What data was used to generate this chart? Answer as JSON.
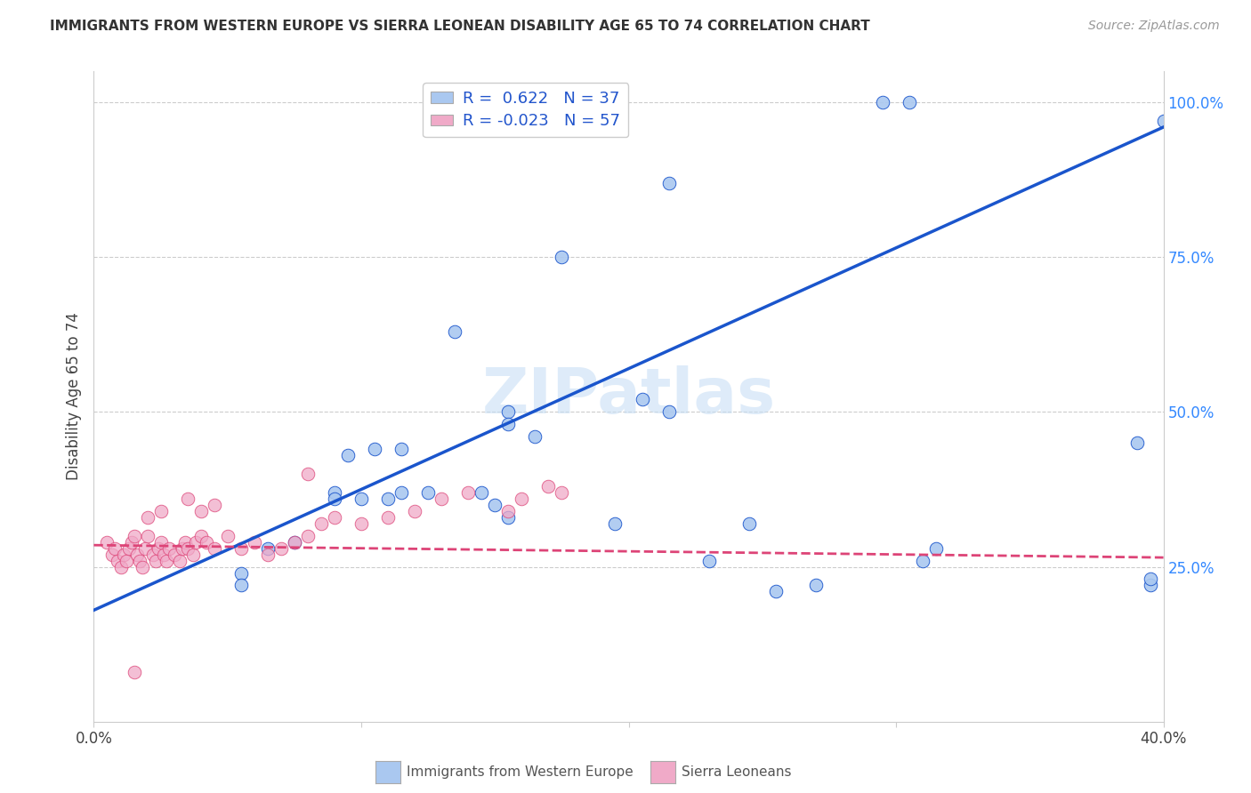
{
  "title": "IMMIGRANTS FROM WESTERN EUROPE VS SIERRA LEONEAN DISABILITY AGE 65 TO 74 CORRELATION CHART",
  "source": "Source: ZipAtlas.com",
  "ylabel": "Disability Age 65 to 74",
  "xlim": [
    0.0,
    0.4
  ],
  "ylim": [
    0.0,
    1.05
  ],
  "blue_r": 0.622,
  "blue_n": 37,
  "pink_r": -0.023,
  "pink_n": 57,
  "blue_color": "#aac8f0",
  "pink_color": "#f0aac8",
  "blue_line_color": "#1a55cc",
  "pink_line_color": "#dd4477",
  "legend_blue_label": "Immigrants from Western Europe",
  "legend_pink_label": "Sierra Leoneans",
  "watermark": "ZIPatlas",
  "blue_points_x": [
    0.295,
    0.305,
    0.215,
    0.175,
    0.135,
    0.205,
    0.215,
    0.155,
    0.155,
    0.165,
    0.095,
    0.105,
    0.115,
    0.09,
    0.09,
    0.065,
    0.075,
    0.055,
    0.055,
    0.1,
    0.115,
    0.11,
    0.125,
    0.145,
    0.15,
    0.155,
    0.195,
    0.245,
    0.23,
    0.255,
    0.27,
    0.31,
    0.315,
    0.39,
    0.395,
    0.395,
    0.4
  ],
  "blue_points_y": [
    1.0,
    1.0,
    0.87,
    0.75,
    0.63,
    0.52,
    0.5,
    0.5,
    0.48,
    0.46,
    0.43,
    0.44,
    0.44,
    0.37,
    0.36,
    0.28,
    0.29,
    0.24,
    0.22,
    0.36,
    0.37,
    0.36,
    0.37,
    0.37,
    0.35,
    0.33,
    0.32,
    0.32,
    0.26,
    0.21,
    0.22,
    0.26,
    0.28,
    0.45,
    0.22,
    0.23,
    0.97
  ],
  "pink_points_x": [
    0.005,
    0.007,
    0.008,
    0.009,
    0.01,
    0.011,
    0.012,
    0.013,
    0.014,
    0.015,
    0.016,
    0.017,
    0.018,
    0.019,
    0.02,
    0.022,
    0.023,
    0.024,
    0.025,
    0.026,
    0.027,
    0.028,
    0.03,
    0.032,
    0.033,
    0.034,
    0.035,
    0.037,
    0.038,
    0.04,
    0.042,
    0.045,
    0.05,
    0.055,
    0.06,
    0.065,
    0.07,
    0.075,
    0.08,
    0.085,
    0.09,
    0.1,
    0.11,
    0.12,
    0.13,
    0.14,
    0.155,
    0.16,
    0.17,
    0.175,
    0.035,
    0.04,
    0.045,
    0.02,
    0.025,
    0.08,
    0.015
  ],
  "pink_points_y": [
    0.29,
    0.27,
    0.28,
    0.26,
    0.25,
    0.27,
    0.26,
    0.28,
    0.29,
    0.3,
    0.27,
    0.26,
    0.25,
    0.28,
    0.3,
    0.27,
    0.26,
    0.28,
    0.29,
    0.27,
    0.26,
    0.28,
    0.27,
    0.26,
    0.28,
    0.29,
    0.28,
    0.27,
    0.29,
    0.3,
    0.29,
    0.28,
    0.3,
    0.28,
    0.29,
    0.27,
    0.28,
    0.29,
    0.3,
    0.32,
    0.33,
    0.32,
    0.33,
    0.34,
    0.36,
    0.37,
    0.34,
    0.36,
    0.38,
    0.37,
    0.36,
    0.34,
    0.35,
    0.33,
    0.34,
    0.4,
    0.08
  ],
  "blue_line_x": [
    0.0,
    0.4
  ],
  "blue_line_y": [
    0.18,
    0.96
  ],
  "pink_line_x": [
    0.0,
    0.4
  ],
  "pink_line_y": [
    0.285,
    0.265
  ]
}
